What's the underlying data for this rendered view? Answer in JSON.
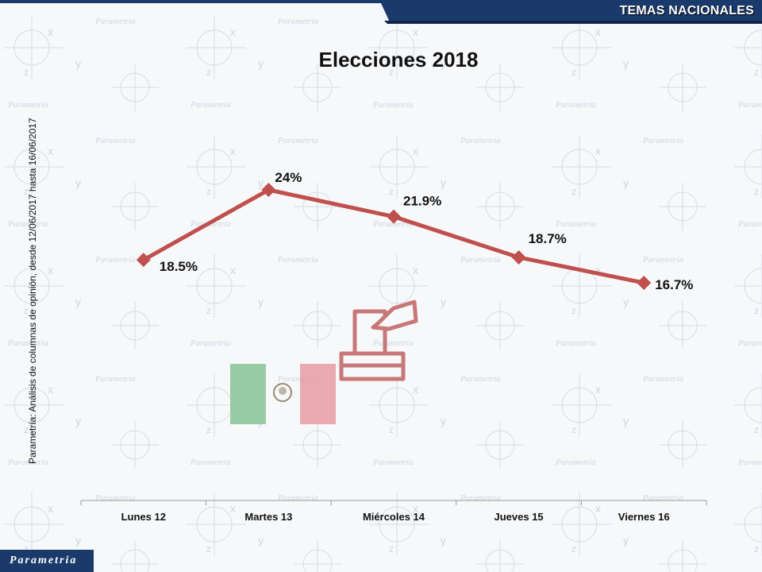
{
  "header": {
    "section": "TEMAS NACIONALES"
  },
  "title": "Elecciones 2018",
  "source_note": "Parametría: Análisis de columnas de opinión, desde 12/06/2017 hasta 16/06/2017",
  "watermark": "Parametría",
  "logo_text": "Parametria",
  "colors": {
    "line": "#c0504d",
    "header": "#1a3a6b",
    "flag_green": "#8fc79b",
    "flag_red": "#e8a0a8",
    "ballot": "#c87878"
  },
  "chart_data": {
    "type": "line",
    "categories": [
      "Lunes 12",
      "Martes 13",
      "Miércoles 14",
      "Jueves 15",
      "Viernes 16"
    ],
    "series": [
      {
        "values": [
          18.5,
          24,
          21.9,
          18.7,
          16.7
        ]
      }
    ],
    "data_labels": [
      "18.5%",
      "24%",
      "21.9%",
      "18.7%",
      "16.7%"
    ],
    "title": "Elecciones 2018",
    "xlabel": "",
    "ylabel": "",
    "ylim": [
      0,
      28
    ],
    "grid": false,
    "legend": "none"
  }
}
